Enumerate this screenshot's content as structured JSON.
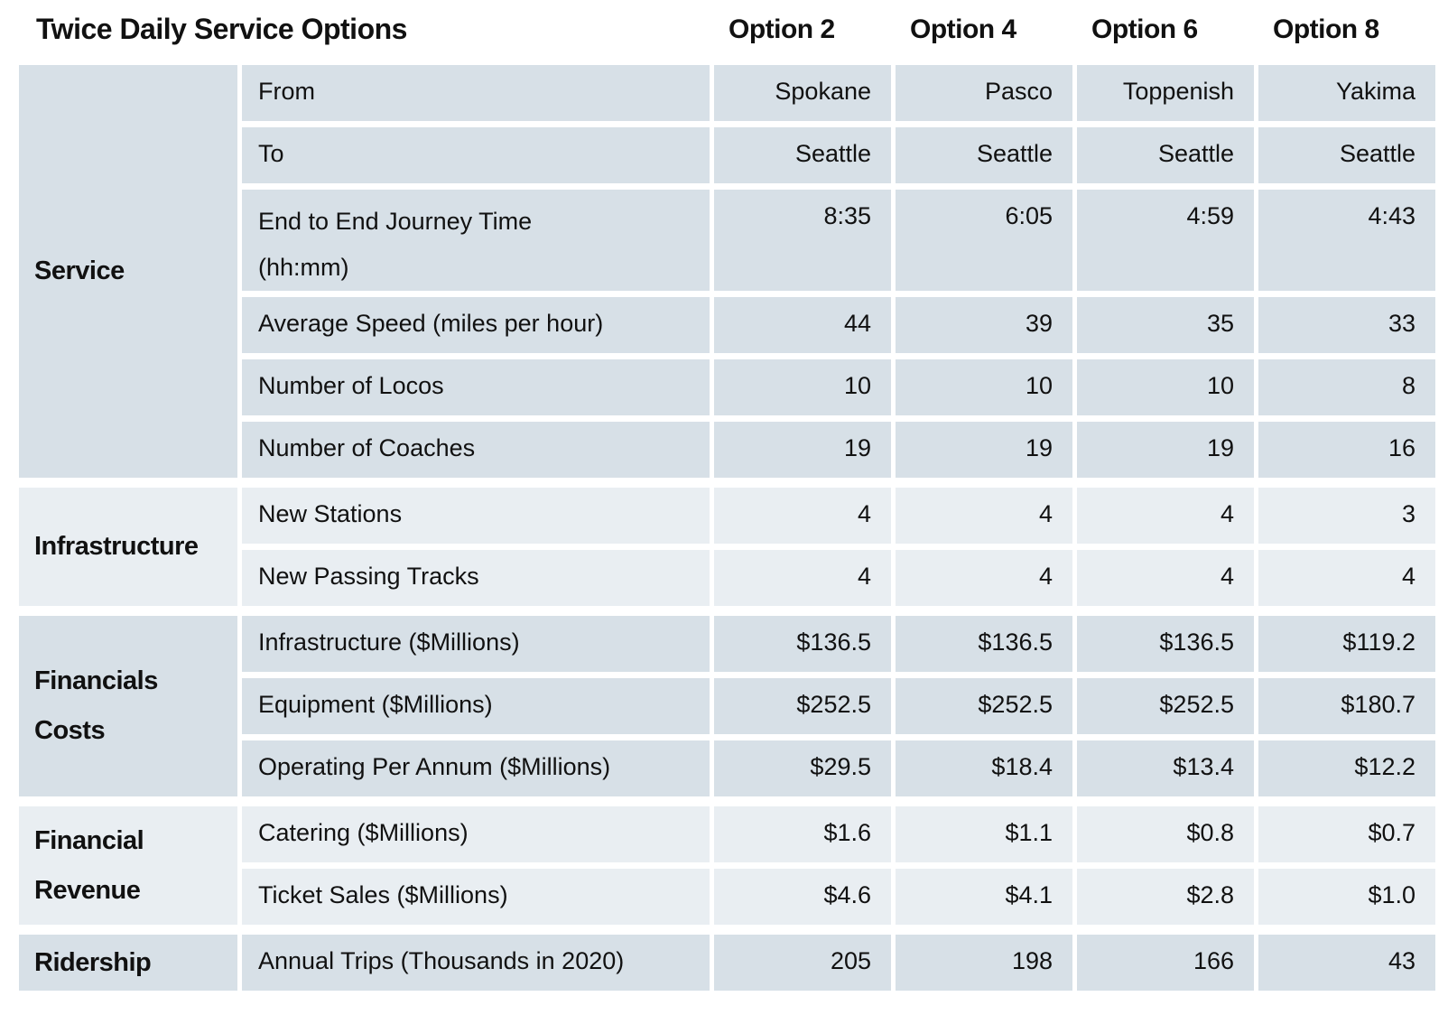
{
  "title": "Twice Daily Service Options",
  "columns": [
    "Option 2",
    "Option 4",
    "Option 6",
    "Option 8"
  ],
  "colors": {
    "band_dark": "#d7e0e7",
    "band_light": "#e9eef2",
    "text": "#111111",
    "background": "#ffffff"
  },
  "sections": [
    {
      "group": "Service",
      "group_lines": [
        "Service"
      ],
      "tone": "dark",
      "rows": [
        {
          "label": "From",
          "lines": [
            "From"
          ],
          "values": [
            "Spokane",
            "Pasco",
            "Toppenish",
            "Yakima"
          ]
        },
        {
          "label": "To",
          "lines": [
            "To"
          ],
          "values": [
            "Seattle",
            "Seattle",
            "Seattle",
            "Seattle"
          ]
        },
        {
          "label": "End to End Journey Time (hh:mm)",
          "lines": [
            "End to End Journey Time",
            "(hh:mm)"
          ],
          "tall": true,
          "values": [
            "8:35",
            "6:05",
            "4:59",
            "4:43"
          ]
        },
        {
          "label": "Average Speed (miles per hour)",
          "lines": [
            "Average Speed (miles per hour)"
          ],
          "values": [
            "44",
            "39",
            "35",
            "33"
          ]
        },
        {
          "label": "Number of Locos",
          "lines": [
            "Number of Locos"
          ],
          "values": [
            "10",
            "10",
            "10",
            "8"
          ]
        },
        {
          "label": "Number of Coaches",
          "lines": [
            "Number of Coaches"
          ],
          "values": [
            "19",
            "19",
            "19",
            "16"
          ]
        }
      ]
    },
    {
      "group": "Infrastructure",
      "group_lines": [
        "Infrastructure"
      ],
      "tone": "light",
      "rows": [
        {
          "label": "New Stations",
          "lines": [
            "New Stations"
          ],
          "values": [
            "4",
            "4",
            "4",
            "3"
          ]
        },
        {
          "label": "New Passing Tracks",
          "lines": [
            "New Passing Tracks"
          ],
          "values": [
            "4",
            "4",
            "4",
            "4"
          ]
        }
      ]
    },
    {
      "group": "Financials Costs",
      "group_lines": [
        "Financials",
        "Costs"
      ],
      "tone": "dark",
      "rows": [
        {
          "label": "Infrastructure ($Millions)",
          "lines": [
            "Infrastructure ($Millions)"
          ],
          "values": [
            "$136.5",
            "$136.5",
            "$136.5",
            "$119.2"
          ]
        },
        {
          "label": "Equipment ($Millions)",
          "lines": [
            "Equipment ($Millions)"
          ],
          "values": [
            "$252.5",
            "$252.5",
            "$252.5",
            "$180.7"
          ]
        },
        {
          "label": "Operating Per Annum ($Millions)",
          "lines": [
            "Operating Per Annum ($Millions)"
          ],
          "values": [
            "$29.5",
            "$18.4",
            "$13.4",
            "$12.2"
          ]
        }
      ]
    },
    {
      "group": "Financial Revenue",
      "group_lines": [
        "Financial",
        "Revenue"
      ],
      "tone": "light",
      "rows": [
        {
          "label": "Catering ($Millions)",
          "lines": [
            "Catering ($Millions)"
          ],
          "values": [
            "$1.6",
            "$1.1",
            "$0.8",
            "$0.7"
          ]
        },
        {
          "label": "Ticket Sales ($Millions)",
          "lines": [
            "Ticket Sales ($Millions)"
          ],
          "values": [
            "$4.6",
            "$4.1",
            "$2.8",
            "$1.0"
          ]
        }
      ]
    },
    {
      "group": "Ridership",
      "group_lines": [
        "Ridership"
      ],
      "tone": "dark",
      "rows": [
        {
          "label": "Annual Trips (Thousands in 2020)",
          "lines": [
            "Annual Trips (Thousands in 2020)"
          ],
          "values": [
            "205",
            "198",
            "166",
            "43"
          ]
        }
      ]
    }
  ],
  "chart_data": {
    "type": "table",
    "title": "Twice Daily Service Options",
    "columns": [
      "Category",
      "Metric",
      "Option 2",
      "Option 4",
      "Option 6",
      "Option 8"
    ],
    "rows": [
      [
        "Service",
        "From",
        "Spokane",
        "Pasco",
        "Toppenish",
        "Yakima"
      ],
      [
        "Service",
        "To",
        "Seattle",
        "Seattle",
        "Seattle",
        "Seattle"
      ],
      [
        "Service",
        "End to End Journey Time (hh:mm)",
        "8:35",
        "6:05",
        "4:59",
        "4:43"
      ],
      [
        "Service",
        "Average Speed (miles per hour)",
        "44",
        "39",
        "35",
        "33"
      ],
      [
        "Service",
        "Number of Locos",
        "10",
        "10",
        "10",
        "8"
      ],
      [
        "Service",
        "Number of Coaches",
        "19",
        "19",
        "19",
        "16"
      ],
      [
        "Infrastructure",
        "New Stations",
        "4",
        "4",
        "4",
        "3"
      ],
      [
        "Infrastructure",
        "New Passing Tracks",
        "4",
        "4",
        "4",
        "4"
      ],
      [
        "Financials Costs",
        "Infrastructure ($Millions)",
        "$136.5",
        "$136.5",
        "$136.5",
        "$119.2"
      ],
      [
        "Financials Costs",
        "Equipment ($Millions)",
        "$252.5",
        "$252.5",
        "$252.5",
        "$180.7"
      ],
      [
        "Financials Costs",
        "Operating Per Annum ($Millions)",
        "$29.5",
        "$18.4",
        "$13.4",
        "$12.2"
      ],
      [
        "Financial Revenue",
        "Catering ($Millions)",
        "$1.6",
        "$1.1",
        "$0.8",
        "$0.7"
      ],
      [
        "Financial Revenue",
        "Ticket Sales ($Millions)",
        "$4.6",
        "$4.1",
        "$2.8",
        "$1.0"
      ],
      [
        "Ridership",
        "Annual Trips (Thousands in 2020)",
        "205",
        "198",
        "166",
        "43"
      ]
    ]
  }
}
